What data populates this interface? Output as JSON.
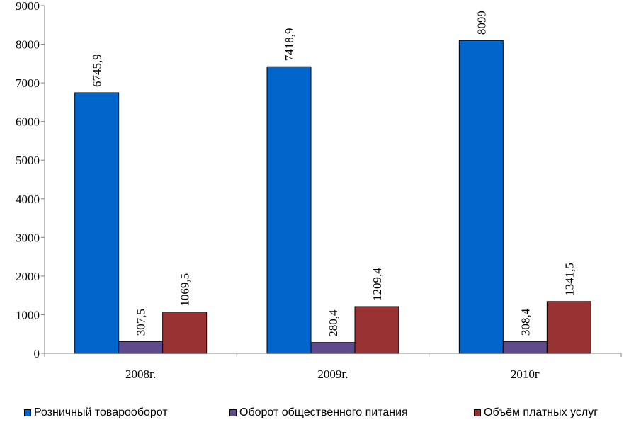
{
  "chart_data": {
    "type": "bar",
    "categories": [
      "2008г.",
      "2009г.",
      "2010г"
    ],
    "series": [
      {
        "name": "Розничный товарооборот",
        "values": [
          6745.9,
          7418.9,
          8099
        ],
        "labels": [
          "6745,9",
          "7418,9",
          "8099"
        ],
        "color": "#0066cc"
      },
      {
        "name": "Оборот общественного питания",
        "values": [
          307.5,
          280.4,
          308.4
        ],
        "labels": [
          "307,5",
          "280,4",
          "308,4"
        ],
        "color": "#5f4b8b"
      },
      {
        "name": "Объём платных услуг",
        "values": [
          1069.5,
          1209.4,
          1341.5
        ],
        "labels": [
          "1069,5",
          "1209,4",
          "1341,5"
        ],
        "color": "#993333"
      }
    ],
    "ylim": [
      0,
      9000
    ],
    "yticks": [
      "0",
      "1000",
      "2000",
      "3000",
      "4000",
      "5000",
      "6000",
      "7000",
      "8000",
      "9000"
    ],
    "legend_position": "bottom",
    "grid": false
  }
}
